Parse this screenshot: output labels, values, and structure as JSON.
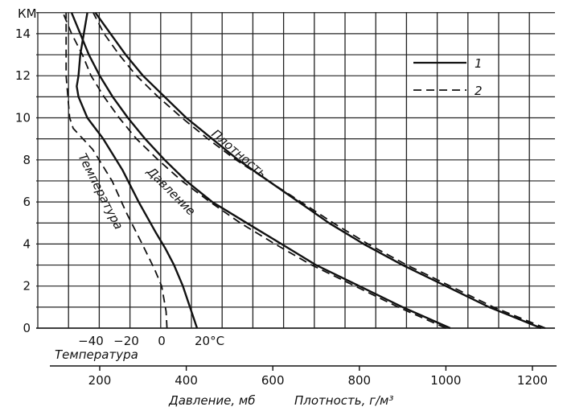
{
  "chart_data": {
    "type": "line",
    "units_label": "КМ",
    "y": {
      "label": "",
      "ylim": [
        0,
        15
      ],
      "ticks": [
        0,
        2,
        4,
        6,
        8,
        10,
        12,
        14
      ]
    },
    "temperature_axis": {
      "label": "Температура",
      "unit_label": "20°C",
      "ticks": [
        -40,
        -20,
        0
      ],
      "range": [
        -60,
        40
      ]
    },
    "pressure_density_axis": {
      "label": "Давление, мб",
      "label2": "Плотность, г/м³",
      "ticks": [
        200,
        400,
        600,
        800,
        1000,
        1200
      ],
      "range": [
        100,
        1280
      ]
    },
    "legend": [
      {
        "label": "1",
        "dash": "solid"
      },
      {
        "label": "2",
        "dash": "dashed"
      }
    ],
    "curve_labels": {
      "temperature": "Температура",
      "pressure": "Давление",
      "density": "Плотность"
    },
    "series": [
      {
        "curve": "temperature",
        "legend": "1",
        "axis": "temperature",
        "points": [
          [
            20,
            0
          ],
          [
            16,
            1
          ],
          [
            12,
            2
          ],
          [
            7,
            3
          ],
          [
            2,
            3.8
          ],
          [
            -3,
            4.5
          ],
          [
            -13,
            6
          ],
          [
            -22,
            7.5
          ],
          [
            -33,
            9
          ],
          [
            -42,
            10
          ],
          [
            -47,
            11
          ],
          [
            -48,
            11.5
          ],
          [
            -47,
            12
          ],
          [
            -46,
            13
          ],
          [
            -44,
            14
          ],
          [
            -42,
            15
          ]
        ]
      },
      {
        "curve": "temperature",
        "legend": "2",
        "axis": "temperature",
        "points": [
          [
            3,
            0
          ],
          [
            2.5,
            0.8
          ],
          [
            0,
            2
          ],
          [
            -4,
            2.8
          ],
          [
            -11,
            4
          ],
          [
            -20,
            5.5
          ],
          [
            -28,
            7
          ],
          [
            -39,
            8.5
          ],
          [
            -50,
            9.5
          ],
          [
            -52,
            10
          ],
          [
            -53,
            11
          ],
          [
            -54,
            12
          ],
          [
            -54,
            13
          ],
          [
            -54,
            14
          ],
          [
            -54,
            15
          ]
        ]
      },
      {
        "curve": "pressure",
        "legend": "1",
        "axis": "pressure_density",
        "points": [
          [
            1010,
            0
          ],
          [
            900,
            1
          ],
          [
            800,
            2
          ],
          [
            700,
            3
          ],
          [
            620,
            4
          ],
          [
            540,
            5
          ],
          [
            460,
            6
          ],
          [
            400,
            7
          ],
          [
            350,
            8
          ],
          [
            305,
            9
          ],
          [
            265,
            10
          ],
          [
            230,
            11
          ],
          [
            200,
            12
          ],
          [
            175,
            13
          ],
          [
            155,
            14
          ],
          [
            135,
            15
          ]
        ]
      },
      {
        "curve": "pressure",
        "legend": "2",
        "axis": "pressure_density",
        "points": [
          [
            1000,
            0
          ],
          [
            890,
            1
          ],
          [
            790,
            2
          ],
          [
            690,
            3
          ],
          [
            605,
            4
          ],
          [
            525,
            5
          ],
          [
            455,
            6
          ],
          [
            390,
            7
          ],
          [
            335,
            8
          ],
          [
            285,
            9
          ],
          [
            245,
            10
          ],
          [
            210,
            11
          ],
          [
            180,
            12
          ],
          [
            160,
            13
          ],
          [
            135,
            14
          ],
          [
            115,
            15
          ]
        ]
      },
      {
        "curve": "density",
        "legend": "1",
        "axis": "pressure_density",
        "points": [
          [
            1220,
            0
          ],
          [
            1100,
            1
          ],
          [
            1000,
            2
          ],
          [
            900,
            3
          ],
          [
            810,
            4
          ],
          [
            730,
            5
          ],
          [
            660,
            6
          ],
          [
            590,
            7
          ],
          [
            520,
            8
          ],
          [
            460,
            9
          ],
          [
            400,
            10
          ],
          [
            350,
            11
          ],
          [
            300,
            12
          ],
          [
            260,
            13
          ],
          [
            225,
            14
          ],
          [
            190,
            15
          ]
        ]
      },
      {
        "curve": "density",
        "legend": "2",
        "axis": "pressure_density",
        "points": [
          [
            1230,
            0
          ],
          [
            1110,
            1
          ],
          [
            1010,
            2
          ],
          [
            910,
            3
          ],
          [
            820,
            4
          ],
          [
            740,
            5
          ],
          [
            665,
            6
          ],
          [
            590,
            7
          ],
          [
            515,
            8
          ],
          [
            450,
            9
          ],
          [
            390,
            10
          ],
          [
            335,
            11
          ],
          [
            285,
            12
          ],
          [
            245,
            13
          ],
          [
            210,
            14
          ],
          [
            185,
            15
          ]
        ]
      }
    ]
  }
}
